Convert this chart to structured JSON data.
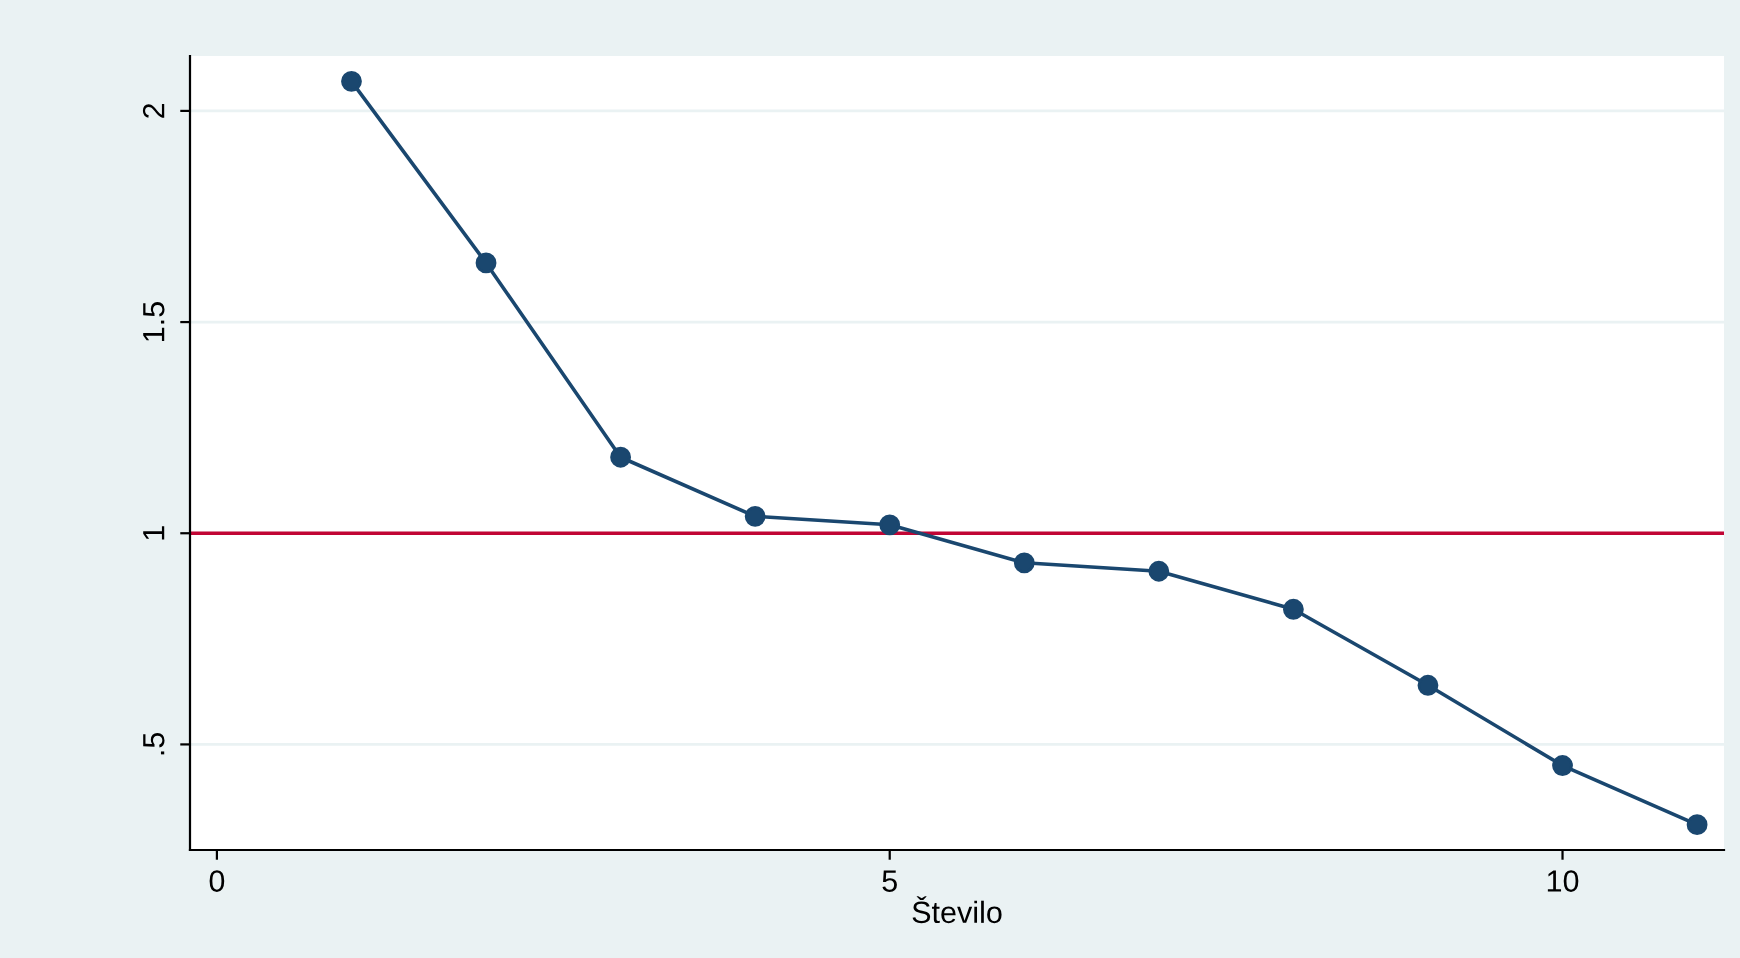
{
  "chart_data": {
    "type": "line",
    "xlabel": "Število",
    "x": [
      1,
      2,
      3,
      4,
      5,
      6,
      7,
      8,
      9,
      10,
      11
    ],
    "series": [
      {
        "color": "#1a476f",
        "values": [
          2.07,
          1.64,
          1.18,
          1.04,
          1.02,
          0.93,
          0.91,
          0.82,
          0.64,
          0.45,
          0.31
        ]
      }
    ],
    "xlim": [
      -0.2,
      11.2
    ],
    "xticks": [
      0,
      5,
      10
    ],
    "ylim": [
      0.25,
      2.13
    ],
    "yticks": [
      {
        "value": 0.5,
        "label": ".5"
      },
      1,
      1.5,
      2
    ],
    "ref_lines": [
      {
        "axis": "y",
        "value": 1,
        "color": "#c10534",
        "line_style": "solid"
      }
    ],
    "grid": "y",
    "marker": "circle",
    "line_style": "solid"
  }
}
